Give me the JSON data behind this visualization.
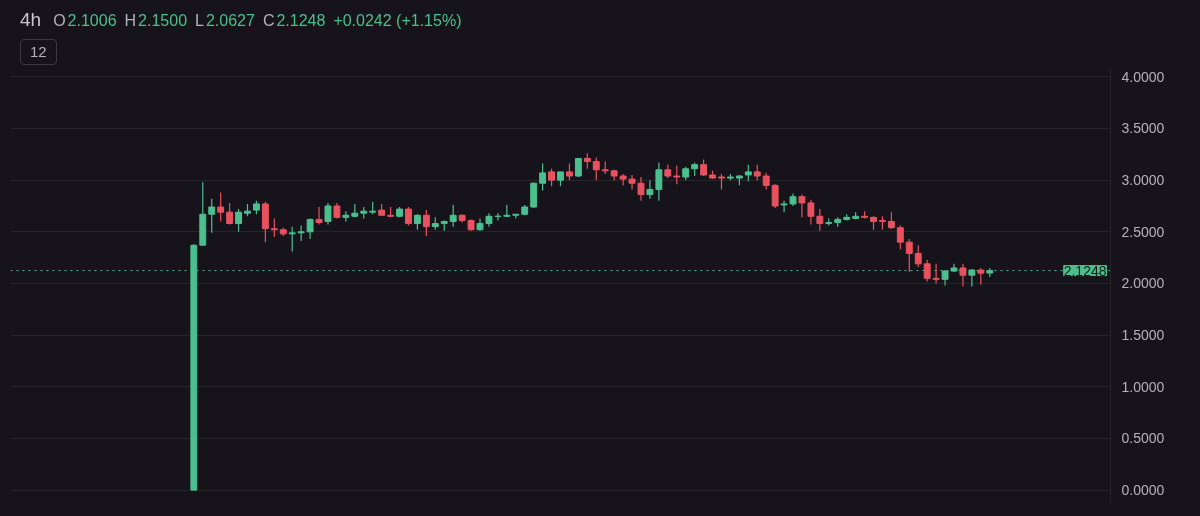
{
  "chart_data": {
    "type": "candlestick",
    "title": "4h",
    "annotations": [
      "O",
      "2.1006",
      "H",
      "2.1500",
      "L",
      "2.0627",
      "C",
      "2.1248",
      "+0.0242 (+1.15%)",
      "12"
    ],
    "categories": [
      null,
      null,
      null,
      null,
      null,
      null,
      null,
      null,
      null,
      null,
      null,
      null,
      null,
      null,
      null,
      null,
      null,
      null,
      null,
      null,
      null,
      null,
      null,
      null,
      null,
      null,
      null,
      null,
      null,
      null,
      null,
      null,
      null,
      null,
      null,
      null,
      null,
      null,
      null,
      null,
      null,
      null,
      null,
      null,
      null,
      null,
      null,
      null,
      null,
      null,
      null,
      null,
      null,
      null,
      null,
      null,
      null,
      null,
      null,
      null,
      null,
      null,
      null,
      null,
      null,
      null,
      null,
      null,
      null,
      null,
      null,
      null,
      null,
      null,
      null,
      null,
      null,
      null,
      null,
      null,
      null,
      null,
      null,
      null,
      null,
      null,
      null,
      null,
      null,
      null,
      null,
      null,
      null,
      null,
      null,
      null,
      null,
      null,
      null,
      null,
      null,
      null,
      null,
      null,
      null,
      null,
      null,
      null,
      null,
      null,
      null,
      null,
      null,
      null,
      null,
      null,
      null,
      null,
      null,
      null,
      null,
      null,
      null
    ],
    "ohlc": [
      null,
      null,
      null,
      null,
      null,
      null,
      null,
      null,
      null,
      null,
      null,
      null,
      null,
      null,
      null,
      null,
      null,
      null,
      null,
      null,
      [
        0,
        2.38,
        0,
        2.37
      ],
      [
        2.37,
        2.98,
        2.37,
        2.67
      ],
      [
        2.67,
        2.82,
        2.49,
        2.74
      ],
      [
        2.74,
        2.88,
        2.6,
        2.69
      ],
      [
        2.69,
        2.78,
        2.57,
        2.58
      ],
      [
        2.58,
        2.72,
        2.5,
        2.69
      ],
      [
        2.68,
        2.77,
        2.65,
        2.7
      ],
      [
        2.71,
        2.8,
        2.67,
        2.77
      ],
      [
        2.77,
        2.79,
        2.4,
        2.53
      ],
      [
        2.53,
        2.63,
        2.45,
        2.52
      ],
      [
        2.52,
        2.54,
        2.46,
        2.48
      ],
      [
        2.48,
        2.55,
        2.31,
        2.49
      ],
      [
        2.49,
        2.56,
        2.41,
        2.5
      ],
      [
        2.5,
        2.63,
        2.43,
        2.62
      ],
      [
        2.62,
        2.74,
        2.57,
        2.59
      ],
      [
        2.6,
        2.78,
        2.57,
        2.75
      ],
      [
        2.75,
        2.78,
        2.63,
        2.64
      ],
      [
        2.64,
        2.7,
        2.6,
        2.66
      ],
      [
        2.65,
        2.77,
        2.64,
        2.68
      ],
      [
        2.68,
        2.74,
        2.63,
        2.7
      ],
      [
        2.69,
        2.79,
        2.67,
        2.7
      ],
      [
        2.71,
        2.77,
        2.66,
        2.66
      ],
      [
        2.66,
        2.74,
        2.64,
        2.65
      ],
      [
        2.65,
        2.74,
        2.64,
        2.72
      ],
      [
        2.72,
        2.74,
        2.56,
        2.58
      ],
      [
        2.58,
        2.67,
        2.52,
        2.66
      ],
      [
        2.66,
        2.71,
        2.46,
        2.55
      ],
      [
        2.55,
        2.64,
        2.52,
        2.58
      ],
      [
        2.58,
        2.61,
        2.51,
        2.6
      ],
      [
        2.6,
        2.76,
        2.55,
        2.66
      ],
      [
        2.66,
        2.67,
        2.59,
        2.61
      ],
      [
        2.61,
        2.62,
        2.51,
        2.52
      ],
      [
        2.52,
        2.63,
        2.51,
        2.58
      ],
      [
        2.58,
        2.68,
        2.55,
        2.65
      ],
      [
        2.65,
        2.68,
        2.61,
        2.65
      ],
      [
        2.65,
        2.76,
        2.64,
        2.66
      ],
      [
        2.66,
        2.67,
        2.63,
        2.67
      ],
      [
        2.67,
        2.76,
        2.66,
        2.74
      ],
      [
        2.74,
        2.98,
        2.73,
        2.97
      ],
      [
        2.97,
        3.16,
        2.9,
        3.07
      ],
      [
        3.08,
        3.11,
        2.94,
        3.0
      ],
      [
        3.0,
        3.08,
        2.94,
        3.08
      ],
      [
        3.08,
        3.16,
        3.0,
        3.04
      ],
      [
        3.04,
        3.21,
        3.03,
        3.21
      ],
      [
        3.21,
        3.26,
        3.11,
        3.18
      ],
      [
        3.18,
        3.22,
        3.0,
        3.1
      ],
      [
        3.1,
        3.18,
        3.06,
        3.09
      ],
      [
        3.09,
        3.1,
        3.0,
        3.04
      ],
      [
        3.04,
        3.06,
        2.95,
        3.01
      ],
      [
        3.01,
        3.05,
        2.91,
        2.97
      ],
      [
        2.97,
        3.03,
        2.8,
        2.86
      ],
      [
        2.86,
        3.0,
        2.82,
        2.91
      ],
      [
        2.91,
        3.17,
        2.8,
        3.1
      ],
      [
        3.1,
        3.15,
        3.02,
        3.04
      ],
      [
        3.04,
        3.14,
        2.96,
        3.03
      ],
      [
        3.03,
        3.13,
        3.0,
        3.11
      ],
      [
        3.11,
        3.17,
        3.04,
        3.15
      ],
      [
        3.15,
        3.2,
        3.04,
        3.05
      ],
      [
        3.05,
        3.09,
        3.01,
        3.02
      ],
      [
        3.03,
        3.06,
        2.91,
        3.02
      ],
      [
        3.02,
        3.06,
        3.0,
        3.03
      ],
      [
        3.02,
        3.05,
        2.95,
        3.04
      ],
      [
        3.05,
        3.15,
        2.99,
        3.08
      ],
      [
        3.08,
        3.15,
        3.0,
        3.04
      ],
      [
        3.04,
        3.07,
        2.91,
        2.95
      ],
      [
        2.95,
        2.96,
        2.73,
        2.75
      ],
      [
        2.76,
        2.8,
        2.69,
        2.77
      ],
      [
        2.77,
        2.87,
        2.75,
        2.84
      ],
      [
        2.84,
        2.86,
        2.64,
        2.78
      ],
      [
        2.78,
        2.81,
        2.57,
        2.65
      ],
      [
        2.65,
        2.72,
        2.51,
        2.58
      ],
      [
        2.58,
        2.63,
        2.56,
        2.59
      ],
      [
        2.59,
        2.64,
        2.55,
        2.62
      ],
      [
        2.62,
        2.67,
        2.61,
        2.64
      ],
      [
        2.63,
        2.69,
        2.62,
        2.65
      ],
      [
        2.65,
        2.7,
        2.63,
        2.64
      ],
      [
        2.64,
        2.65,
        2.52,
        2.6
      ],
      [
        2.61,
        2.65,
        2.52,
        2.6
      ],
      [
        2.6,
        2.69,
        2.53,
        2.54
      ],
      [
        2.54,
        2.56,
        2.33,
        2.4
      ],
      [
        2.4,
        2.43,
        2.11,
        2.29
      ],
      [
        2.29,
        2.37,
        2.16,
        2.19
      ],
      [
        2.19,
        2.23,
        2.02,
        2.05
      ],
      [
        2.05,
        2.19,
        2.0,
        2.04
      ],
      [
        2.04,
        2.13,
        1.98,
        2.12
      ],
      [
        2.12,
        2.19,
        2.11,
        2.15
      ],
      [
        2.15,
        2.19,
        1.97,
        2.08
      ],
      [
        2.08,
        2.14,
        1.97,
        2.13
      ],
      [
        2.13,
        2.15,
        1.99,
        2.1
      ],
      [
        2.1006,
        2.15,
        2.0627,
        2.1248
      ],
      null,
      null,
      null,
      null,
      null,
      null,
      null,
      null,
      null,
      null,
      null,
      null,
      null
    ],
    "colors": [
      null,
      null,
      null,
      null,
      null,
      null,
      null,
      null,
      null,
      null,
      null,
      null,
      null,
      null,
      null,
      null,
      null,
      null,
      null,
      null,
      "#4cbf8e",
      "#4cbf8e",
      "#4cbf8e",
      "#e8525f",
      "#e8525f",
      "#4cbf8e",
      "#4cbf8e",
      "#4cbf8e",
      "#e8525f",
      "#e8525f",
      "#e8525f",
      "#4cbf8e",
      "#4cbf8e",
      "#4cbf8e",
      "#e8525f",
      "#4cbf8e",
      "#e8525f",
      "#4cbf8e",
      "#4cbf8e",
      "#4cbf8e",
      "#4cbf8e",
      "#e8525f",
      "#e8525f",
      "#4cbf8e",
      "#e8525f",
      "#4cbf8e",
      "#e8525f",
      "#4cbf8e",
      "#4cbf8e",
      "#4cbf8e",
      "#e8525f",
      "#e8525f",
      "#4cbf8e",
      "#4cbf8e",
      "#4cbf8e",
      "#4cbf8e",
      "#4cbf8e",
      "#4cbf8e",
      "#4cbf8e",
      "#4cbf8e",
      "#e8525f",
      "#4cbf8e",
      "#e8525f",
      "#4cbf8e",
      "#e8525f",
      "#e8525f",
      "#e8525f",
      "#e8525f",
      "#e8525f",
      "#e8525f",
      "#e8525f",
      "#4cbf8e",
      "#4cbf8e",
      "#e8525f",
      "#e8525f",
      "#4cbf8e",
      "#4cbf8e",
      "#e8525f",
      "#e8525f",
      "#e8525f",
      "#4cbf8e",
      "#4cbf8e",
      "#4cbf8e",
      "#e8525f",
      "#e8525f",
      "#e8525f",
      "#4cbf8e",
      "#4cbf8e",
      "#e8525f",
      "#e8525f",
      "#e8525f",
      "#4cbf8e",
      "#4cbf8e",
      "#4cbf8e",
      "#4cbf8e",
      "#e8525f",
      "#e8525f",
      "#e8525f",
      "#e8525f",
      "#e8525f",
      "#e8525f",
      "#e8525f",
      "#e8525f",
      "#e8525f",
      "#4cbf8e",
      "#4cbf8e",
      "#e8525f",
      "#4cbf8e",
      "#e8525f",
      "#4cbf8e",
      null,
      null,
      null,
      null,
      null,
      null,
      null,
      null,
      null,
      null,
      null,
      null,
      null
    ],
    "ylim": [
      -0.12,
      4.1
    ],
    "yticks": [
      {
        "value": 0,
        "label": "0.0000"
      },
      {
        "value": 0.5,
        "label": "0.5000"
      },
      {
        "value": 1,
        "label": "1.0000"
      },
      {
        "value": 1.5,
        "label": "1.5000"
      },
      {
        "value": 2,
        "label": "2.0000"
      },
      {
        "value": 2.5,
        "label": "2.5000"
      },
      {
        "value": 3,
        "label": "3.0000"
      },
      {
        "value": 3.5,
        "label": "3.5000"
      },
      {
        "value": 4,
        "label": "4.0000"
      }
    ],
    "grid": "y",
    "ref_lines": [
      {
        "axis": "y",
        "value": 2.1248,
        "label": "2.1248",
        "color": "#4cbf8e",
        "line_style": "dotted"
      }
    ]
  }
}
